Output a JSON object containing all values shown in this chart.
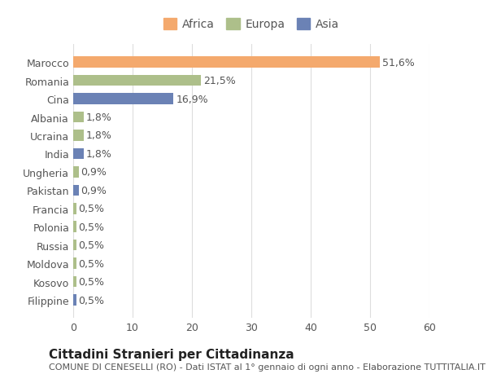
{
  "countries": [
    "Marocco",
    "Romania",
    "Cina",
    "Albania",
    "Ucraina",
    "India",
    "Ungheria",
    "Pakistan",
    "Francia",
    "Polonia",
    "Russia",
    "Moldova",
    "Kosovo",
    "Filippine"
  ],
  "values": [
    51.6,
    21.5,
    16.9,
    1.8,
    1.8,
    1.8,
    0.9,
    0.9,
    0.5,
    0.5,
    0.5,
    0.5,
    0.5,
    0.5
  ],
  "labels": [
    "51,6%",
    "21,5%",
    "16,9%",
    "1,8%",
    "1,8%",
    "1,8%",
    "0,9%",
    "0,9%",
    "0,5%",
    "0,5%",
    "0,5%",
    "0,5%",
    "0,5%",
    "0,5%"
  ],
  "colors": [
    "#F4A96D",
    "#ADBF8A",
    "#6B82B5",
    "#ADBF8A",
    "#ADBF8A",
    "#6B82B5",
    "#ADBF8A",
    "#6B82B5",
    "#ADBF8A",
    "#ADBF8A",
    "#ADBF8A",
    "#ADBF8A",
    "#ADBF8A",
    "#6B82B5"
  ],
  "continent_colors": {
    "Africa": "#F4A96D",
    "Europa": "#ADBF8A",
    "Asia": "#6B82B5"
  },
  "xlim": [
    0,
    60
  ],
  "xticks": [
    0,
    10,
    20,
    30,
    40,
    50,
    60
  ],
  "title": "Cittadini Stranieri per Cittadinanza",
  "subtitle": "COMUNE DI CENESELLI (RO) - Dati ISTAT al 1° gennaio di ogni anno - Elaborazione TUTTITALIA.IT",
  "background_color": "#ffffff",
  "bar_height": 0.6,
  "grid_color": "#dddddd",
  "text_color": "#555555",
  "title_fontsize": 11,
  "subtitle_fontsize": 8,
  "label_fontsize": 9,
  "tick_fontsize": 9
}
